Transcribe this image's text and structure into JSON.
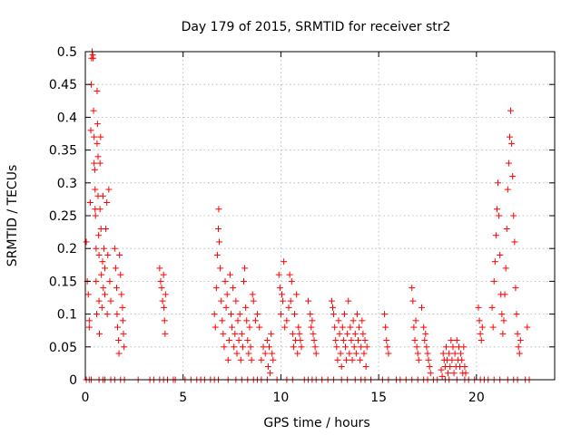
{
  "chart_data": {
    "type": "scatter",
    "title": "Day 179 of 2015, SRMTID for receiver str2",
    "xlabel": "GPS time / hours",
    "ylabel": "SRMTID / TECUs",
    "xlim": [
      0,
      24
    ],
    "ylim": [
      0,
      0.5
    ],
    "xticks": [
      0,
      5,
      10,
      15,
      20
    ],
    "yticks": [
      0,
      0.05,
      0.1,
      0.15,
      0.2,
      0.25,
      0.3,
      0.35,
      0.4,
      0.45,
      0.5
    ],
    "grid": true,
    "marker_color": "#ff0000",
    "marker": "plus",
    "series": [
      {
        "points": [
          [
            0.05,
            0.21
          ],
          [
            0.1,
            0.15
          ],
          [
            0.15,
            0.13
          ],
          [
            0.2,
            0.09
          ],
          [
            0.2,
            0.08
          ],
          [
            0.25,
            0.27
          ],
          [
            0.28,
            0.38
          ],
          [
            0.3,
            0.45
          ],
          [
            0.32,
            0.49
          ],
          [
            0.35,
            0.5
          ],
          [
            0.38,
            0.495
          ],
          [
            0.4,
            0.49
          ],
          [
            0.42,
            0.41
          ],
          [
            0.45,
            0.37
          ],
          [
            0.45,
            0.33
          ],
          [
            0.48,
            0.32
          ],
          [
            0.5,
            0.29
          ],
          [
            0.5,
            0.26
          ],
          [
            0.52,
            0.25
          ],
          [
            0.55,
            0.2
          ],
          [
            0.55,
            0.15
          ],
          [
            0.58,
            0.1
          ],
          [
            0.6,
            0.36
          ],
          [
            0.6,
            0.44
          ],
          [
            0.62,
            0.39
          ],
          [
            0.65,
            0.34
          ],
          [
            0.65,
            0.28
          ],
          [
            0.68,
            0.22
          ],
          [
            0.7,
            0.19
          ],
          [
            0.7,
            0.12
          ],
          [
            0.72,
            0.07
          ],
          [
            0.75,
            0.26
          ],
          [
            0.75,
            0.33
          ],
          [
            0.78,
            0.37
          ],
          [
            0.8,
            0.23
          ],
          [
            0.82,
            0.16
          ],
          [
            0.85,
            0.11
          ],
          [
            0.88,
            0.18
          ],
          [
            0.9,
            0.28
          ],
          [
            0.92,
            0.14
          ],
          [
            0.95,
            0.2
          ],
          [
            1.0,
            0.17
          ],
          [
            1.0,
            0.13
          ],
          [
            1.05,
            0.23
          ],
          [
            1.1,
            0.27
          ],
          [
            1.12,
            0.1
          ],
          [
            1.15,
            0.19
          ],
          [
            1.2,
            0.29
          ],
          [
            1.25,
            0.15
          ],
          [
            1.3,
            0.12
          ],
          [
            1.5,
            0.2
          ],
          [
            1.55,
            0.17
          ],
          [
            1.6,
            0.14
          ],
          [
            1.62,
            0.1
          ],
          [
            1.65,
            0.08
          ],
          [
            1.7,
            0.06
          ],
          [
            1.72,
            0.04
          ],
          [
            1.75,
            0.19
          ],
          [
            1.8,
            0.16
          ],
          [
            1.85,
            0.13
          ],
          [
            1.9,
            0.11
          ],
          [
            1.92,
            0.09
          ],
          [
            1.95,
            0.07
          ],
          [
            1.98,
            0.05
          ],
          [
            3.8,
            0.17
          ],
          [
            3.85,
            0.15
          ],
          [
            3.9,
            0.14
          ],
          [
            3.95,
            0.12
          ],
          [
            4.0,
            0.16
          ],
          [
            4.02,
            0.11
          ],
          [
            4.05,
            0.09
          ],
          [
            4.08,
            0.07
          ],
          [
            4.1,
            0.13
          ],
          [
            6.6,
            0.1
          ],
          [
            6.65,
            0.08
          ],
          [
            6.7,
            0.14
          ],
          [
            6.75,
            0.19
          ],
          [
            6.8,
            0.23
          ],
          [
            6.82,
            0.26
          ],
          [
            6.85,
            0.21
          ],
          [
            6.9,
            0.17
          ],
          [
            6.95,
            0.12
          ],
          [
            7.0,
            0.09
          ],
          [
            7.05,
            0.07
          ],
          [
            7.1,
            0.05
          ],
          [
            7.15,
            0.15
          ],
          [
            7.2,
            0.11
          ],
          [
            7.25,
            0.13
          ],
          [
            7.3,
            0.03
          ],
          [
            7.35,
            0.06
          ],
          [
            7.4,
            0.16
          ],
          [
            7.45,
            0.1
          ],
          [
            7.5,
            0.08
          ],
          [
            7.55,
            0.14
          ],
          [
            7.6,
            0.05
          ],
          [
            7.65,
            0.07
          ],
          [
            7.7,
            0.12
          ],
          [
            7.75,
            0.04
          ],
          [
            7.8,
            0.09
          ],
          [
            7.85,
            0.06
          ],
          [
            7.9,
            0.1
          ],
          [
            7.95,
            0.03
          ],
          [
            8.0,
            0.07
          ],
          [
            8.05,
            0.05
          ],
          [
            8.1,
            0.15
          ],
          [
            8.15,
            0.17
          ],
          [
            8.2,
            0.11
          ],
          [
            8.25,
            0.09
          ],
          [
            8.3,
            0.06
          ],
          [
            8.35,
            0.04
          ],
          [
            8.4,
            0.08
          ],
          [
            8.45,
            0.05
          ],
          [
            8.5,
            0.03
          ],
          [
            8.55,
            0.13
          ],
          [
            8.6,
            0.12
          ],
          [
            8.7,
            0.09
          ],
          [
            8.8,
            0.1
          ],
          [
            8.9,
            0.08
          ],
          [
            9.0,
            0.03
          ],
          [
            9.1,
            0.05
          ],
          [
            9.2,
            0.04
          ],
          [
            9.3,
            0.06
          ],
          [
            9.35,
            0.02
          ],
          [
            9.4,
            0.05
          ],
          [
            9.45,
            0.01
          ],
          [
            9.5,
            0.07
          ],
          [
            9.55,
            0.04
          ],
          [
            9.6,
            0.03
          ],
          [
            9.9,
            0.16
          ],
          [
            9.95,
            0.14
          ],
          [
            10.0,
            0.1
          ],
          [
            10.05,
            0.13
          ],
          [
            10.1,
            0.12
          ],
          [
            10.15,
            0.18
          ],
          [
            10.2,
            0.08
          ],
          [
            10.3,
            0.09
          ],
          [
            10.4,
            0.11
          ],
          [
            10.45,
            0.16
          ],
          [
            10.5,
            0.12
          ],
          [
            10.55,
            0.15
          ],
          [
            10.6,
            0.07
          ],
          [
            10.65,
            0.05
          ],
          [
            10.7,
            0.1
          ],
          [
            10.75,
            0.06
          ],
          [
            10.8,
            0.13
          ],
          [
            10.85,
            0.04
          ],
          [
            10.9,
            0.08
          ],
          [
            10.95,
            0.07
          ],
          [
            11.0,
            0.06
          ],
          [
            11.05,
            0.05
          ],
          [
            11.4,
            0.12
          ],
          [
            11.5,
            0.1
          ],
          [
            11.55,
            0.08
          ],
          [
            11.6,
            0.09
          ],
          [
            11.65,
            0.07
          ],
          [
            11.7,
            0.06
          ],
          [
            11.75,
            0.05
          ],
          [
            11.8,
            0.04
          ],
          [
            12.6,
            0.12
          ],
          [
            12.65,
            0.11
          ],
          [
            12.7,
            0.1
          ],
          [
            12.75,
            0.08
          ],
          [
            12.8,
            0.06
          ],
          [
            12.85,
            0.05
          ],
          [
            12.9,
            0.03
          ],
          [
            12.95,
            0.09
          ],
          [
            13.0,
            0.07
          ],
          [
            13.05,
            0.04
          ],
          [
            13.1,
            0.02
          ],
          [
            13.15,
            0.08
          ],
          [
            13.2,
            0.06
          ],
          [
            13.25,
            0.1
          ],
          [
            13.3,
            0.05
          ],
          [
            13.35,
            0.03
          ],
          [
            13.4,
            0.07
          ],
          [
            13.45,
            0.12
          ],
          [
            13.5,
            0.04
          ],
          [
            13.55,
            0.08
          ],
          [
            13.6,
            0.06
          ],
          [
            13.65,
            0.03
          ],
          [
            13.7,
            0.09
          ],
          [
            13.75,
            0.05
          ],
          [
            13.8,
            0.07
          ],
          [
            13.85,
            0.04
          ],
          [
            13.9,
            0.1
          ],
          [
            13.95,
            0.06
          ],
          [
            14.0,
            0.08
          ],
          [
            14.05,
            0.03
          ],
          [
            14.1,
            0.05
          ],
          [
            14.15,
            0.09
          ],
          [
            14.2,
            0.07
          ],
          [
            14.25,
            0.04
          ],
          [
            14.3,
            0.06
          ],
          [
            14.35,
            0.02
          ],
          [
            14.4,
            0.05
          ],
          [
            15.3,
            0.1
          ],
          [
            15.35,
            0.08
          ],
          [
            15.4,
            0.06
          ],
          [
            15.45,
            0.05
          ],
          [
            15.5,
            0.04
          ],
          [
            16.7,
            0.14
          ],
          [
            16.75,
            0.12
          ],
          [
            16.8,
            0.08
          ],
          [
            16.85,
            0.06
          ],
          [
            16.9,
            0.09
          ],
          [
            16.95,
            0.05
          ],
          [
            17.0,
            0.04
          ],
          [
            17.05,
            0.03
          ],
          [
            17.2,
            0.11
          ],
          [
            17.3,
            0.08
          ],
          [
            17.35,
            0.06
          ],
          [
            17.4,
            0.07
          ],
          [
            17.45,
            0.05
          ],
          [
            17.5,
            0.04
          ],
          [
            17.55,
            0.03
          ],
          [
            17.6,
            0.02
          ],
          [
            17.65,
            0.01
          ],
          [
            18.3,
            0.04
          ],
          [
            18.35,
            0.03
          ],
          [
            18.4,
            0.02
          ],
          [
            18.45,
            0.05
          ],
          [
            18.5,
            0.03
          ],
          [
            18.55,
            0.01
          ],
          [
            18.6,
            0.04
          ],
          [
            18.65,
            0.02
          ],
          [
            18.7,
            0.06
          ],
          [
            18.75,
            0.03
          ],
          [
            18.8,
            0.05
          ],
          [
            18.85,
            0.01
          ],
          [
            18.9,
            0.04
          ],
          [
            18.95,
            0.02
          ],
          [
            19.0,
            0.06
          ],
          [
            19.05,
            0.03
          ],
          [
            19.1,
            0.05
          ],
          [
            19.15,
            0.02
          ],
          [
            19.2,
            0.04
          ],
          [
            19.25,
            0.03
          ],
          [
            19.3,
            0.01
          ],
          [
            19.35,
            0.05
          ],
          [
            19.4,
            0.02
          ],
          [
            18.2,
            0.015
          ],
          [
            18.25,
            0.005
          ],
          [
            19.45,
            0.01
          ],
          [
            20.1,
            0.11
          ],
          [
            20.15,
            0.09
          ],
          [
            20.2,
            0.07
          ],
          [
            20.25,
            0.06
          ],
          [
            20.3,
            0.08
          ],
          [
            20.8,
            0.11
          ],
          [
            20.85,
            0.08
          ],
          [
            20.9,
            0.15
          ],
          [
            20.95,
            0.18
          ],
          [
            21.0,
            0.22
          ],
          [
            21.05,
            0.26
          ],
          [
            21.1,
            0.3
          ],
          [
            21.15,
            0.25
          ],
          [
            21.2,
            0.19
          ],
          [
            21.25,
            0.13
          ],
          [
            21.3,
            0.1
          ],
          [
            21.35,
            0.07
          ],
          [
            21.4,
            0.09
          ],
          [
            21.45,
            0.13
          ],
          [
            21.5,
            0.17
          ],
          [
            21.55,
            0.23
          ],
          [
            21.6,
            0.29
          ],
          [
            21.65,
            0.33
          ],
          [
            21.7,
            0.37
          ],
          [
            21.75,
            0.41
          ],
          [
            21.8,
            0.36
          ],
          [
            21.85,
            0.31
          ],
          [
            21.9,
            0.25
          ],
          [
            21.95,
            0.21
          ],
          [
            22.0,
            0.14
          ],
          [
            22.05,
            0.1
          ],
          [
            22.1,
            0.07
          ],
          [
            22.15,
            0.05
          ],
          [
            22.2,
            0.04
          ],
          [
            22.25,
            0.06
          ],
          [
            22.6,
            0.08
          ]
        ]
      }
    ],
    "zero_points_x": [
      0.05,
      0.2,
      0.3,
      0.7,
      0.9,
      1.0,
      1.3,
      1.5,
      1.8,
      2.0,
      2.7,
      3.3,
      3.5,
      3.8,
      4.0,
      4.2,
      4.5,
      4.6,
      5.1,
      5.4,
      5.7,
      5.9,
      6.1,
      6.4,
      6.6,
      6.8,
      7.3,
      7.7,
      8.0,
      8.3,
      8.6,
      8.8,
      9.0,
      9.3,
      9.8,
      10.3,
      10.6,
      11.2,
      11.4,
      11.6,
      11.8,
      12.1,
      12.4,
      12.7,
      13.1,
      13.4,
      13.8,
      14.1,
      14.3,
      14.6,
      15.2,
      15.5,
      15.9,
      16.1,
      16.4,
      16.7,
      17.0,
      17.3,
      17.5,
      17.8,
      18.0,
      18.4,
      18.6,
      19.0,
      19.4,
      19.6,
      19.9,
      20.2,
      20.4,
      20.6,
      20.9,
      21.2,
      21.6,
      21.9,
      22.1,
      22.5,
      22.7
    ]
  }
}
